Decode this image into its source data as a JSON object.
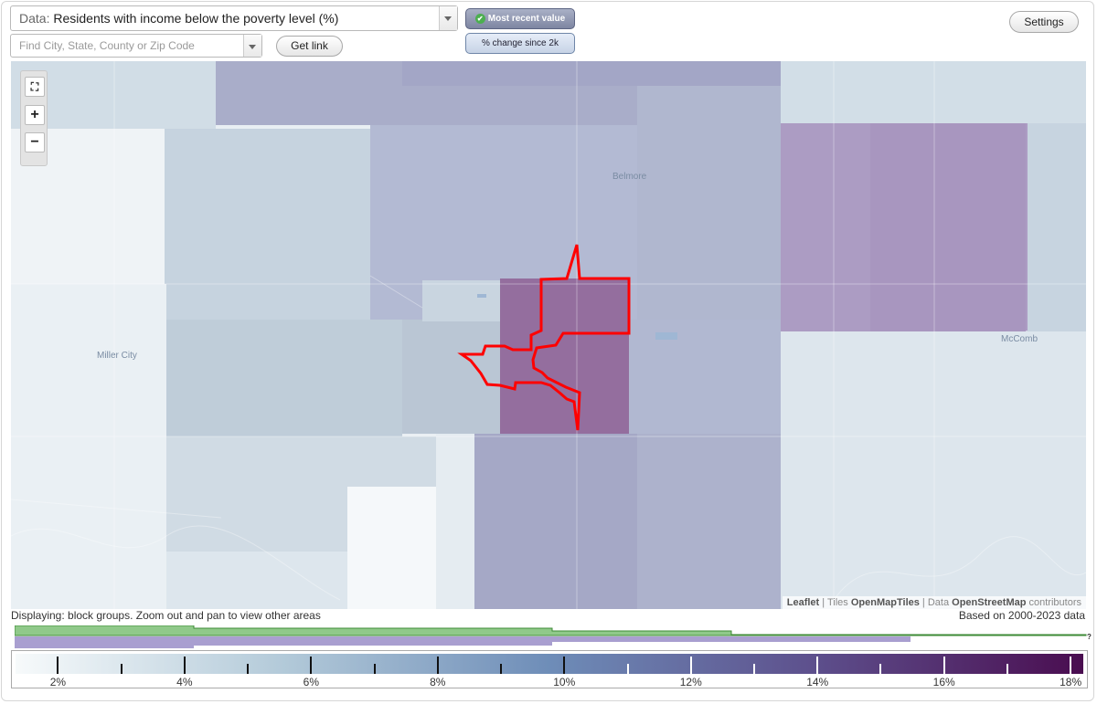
{
  "data_selector": {
    "prefix": "Data:",
    "value": "Residents with income below the poverty level (%)"
  },
  "search": {
    "placeholder": "Find City, State, County or Zip Code"
  },
  "buttons": {
    "get_link": "Get link",
    "settings": "Settings"
  },
  "view_toggle": {
    "most_recent": "Most recent value",
    "change": "% change since 2k",
    "active": "most_recent"
  },
  "zoom": {
    "fullscreen": "fullscreen-icon",
    "in": "+",
    "out": "−"
  },
  "map": {
    "places": [
      "Belmore",
      "Miller City",
      "McComb"
    ],
    "attribution": {
      "leaflet": "Leaflet",
      "tiles_prefix": "Tiles",
      "tiles": "OpenMapTiles",
      "data_prefix": "Data",
      "data": "OpenStreetMap",
      "suffix": "contributors"
    },
    "highlight_color": "#ff0000"
  },
  "footer": {
    "displaying": "Displaying: block groups. Zoom out and pan to view other areas",
    "based_on": "Based on 2000-2023 data",
    "help": "?"
  },
  "legend": {
    "labels": [
      "2%",
      "4%",
      "6%",
      "8%",
      "10%",
      "12%",
      "14%",
      "16%",
      "18%"
    ],
    "min": 1.33,
    "max": 18.2,
    "gradient": [
      "#f7fafb",
      "#b3cad9",
      "#6e8db8",
      "#5d4f8c",
      "#4a0d50"
    ],
    "coverage_bar_colors": [
      "#90c98a",
      "#a99fd0"
    ]
  }
}
